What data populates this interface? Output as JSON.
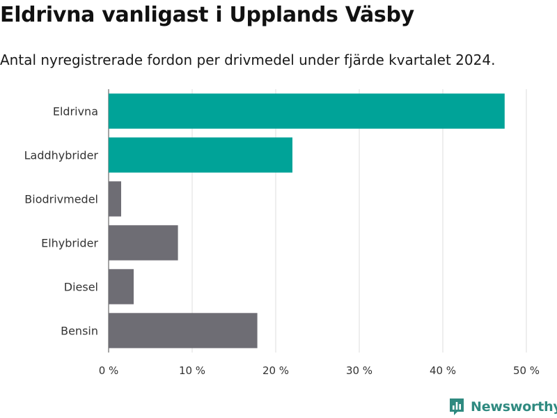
{
  "title": "Eldrivna vanligast i Upplands Väsby",
  "subtitle": "Antal nyregistrerade fordon per drivmedel under fjärde kvartalet 2024.",
  "brand": {
    "name": "Newsworthy",
    "icon": "newsworthy-logo-icon",
    "color": "#2f8a80"
  },
  "chart_data": {
    "type": "bar",
    "orientation": "horizontal",
    "title": "Eldrivna vanligast i Upplands Väsby",
    "subtitle": "Antal nyregistrerade fordon per drivmedel under fjärde kvartalet 2024.",
    "xlabel": "",
    "ylabel": "",
    "categories": [
      "Eldrivna",
      "Laddhybrider",
      "Biodrivmedel",
      "Elhybrider",
      "Diesel",
      "Bensin"
    ],
    "values": [
      47.4,
      22.0,
      1.5,
      8.3,
      3.0,
      17.8
    ],
    "colors": [
      "#00a398",
      "#00a398",
      "#6e6d74",
      "#6e6d74",
      "#6e6d74",
      "#6e6d74"
    ],
    "xlim": [
      0,
      50
    ],
    "xticks": [
      0,
      10,
      20,
      30,
      40,
      50
    ],
    "xtick_labels": [
      "0 %",
      "10 %",
      "20 %",
      "30 %",
      "40 %",
      "50 %"
    ],
    "grid": true,
    "legend": "none"
  }
}
